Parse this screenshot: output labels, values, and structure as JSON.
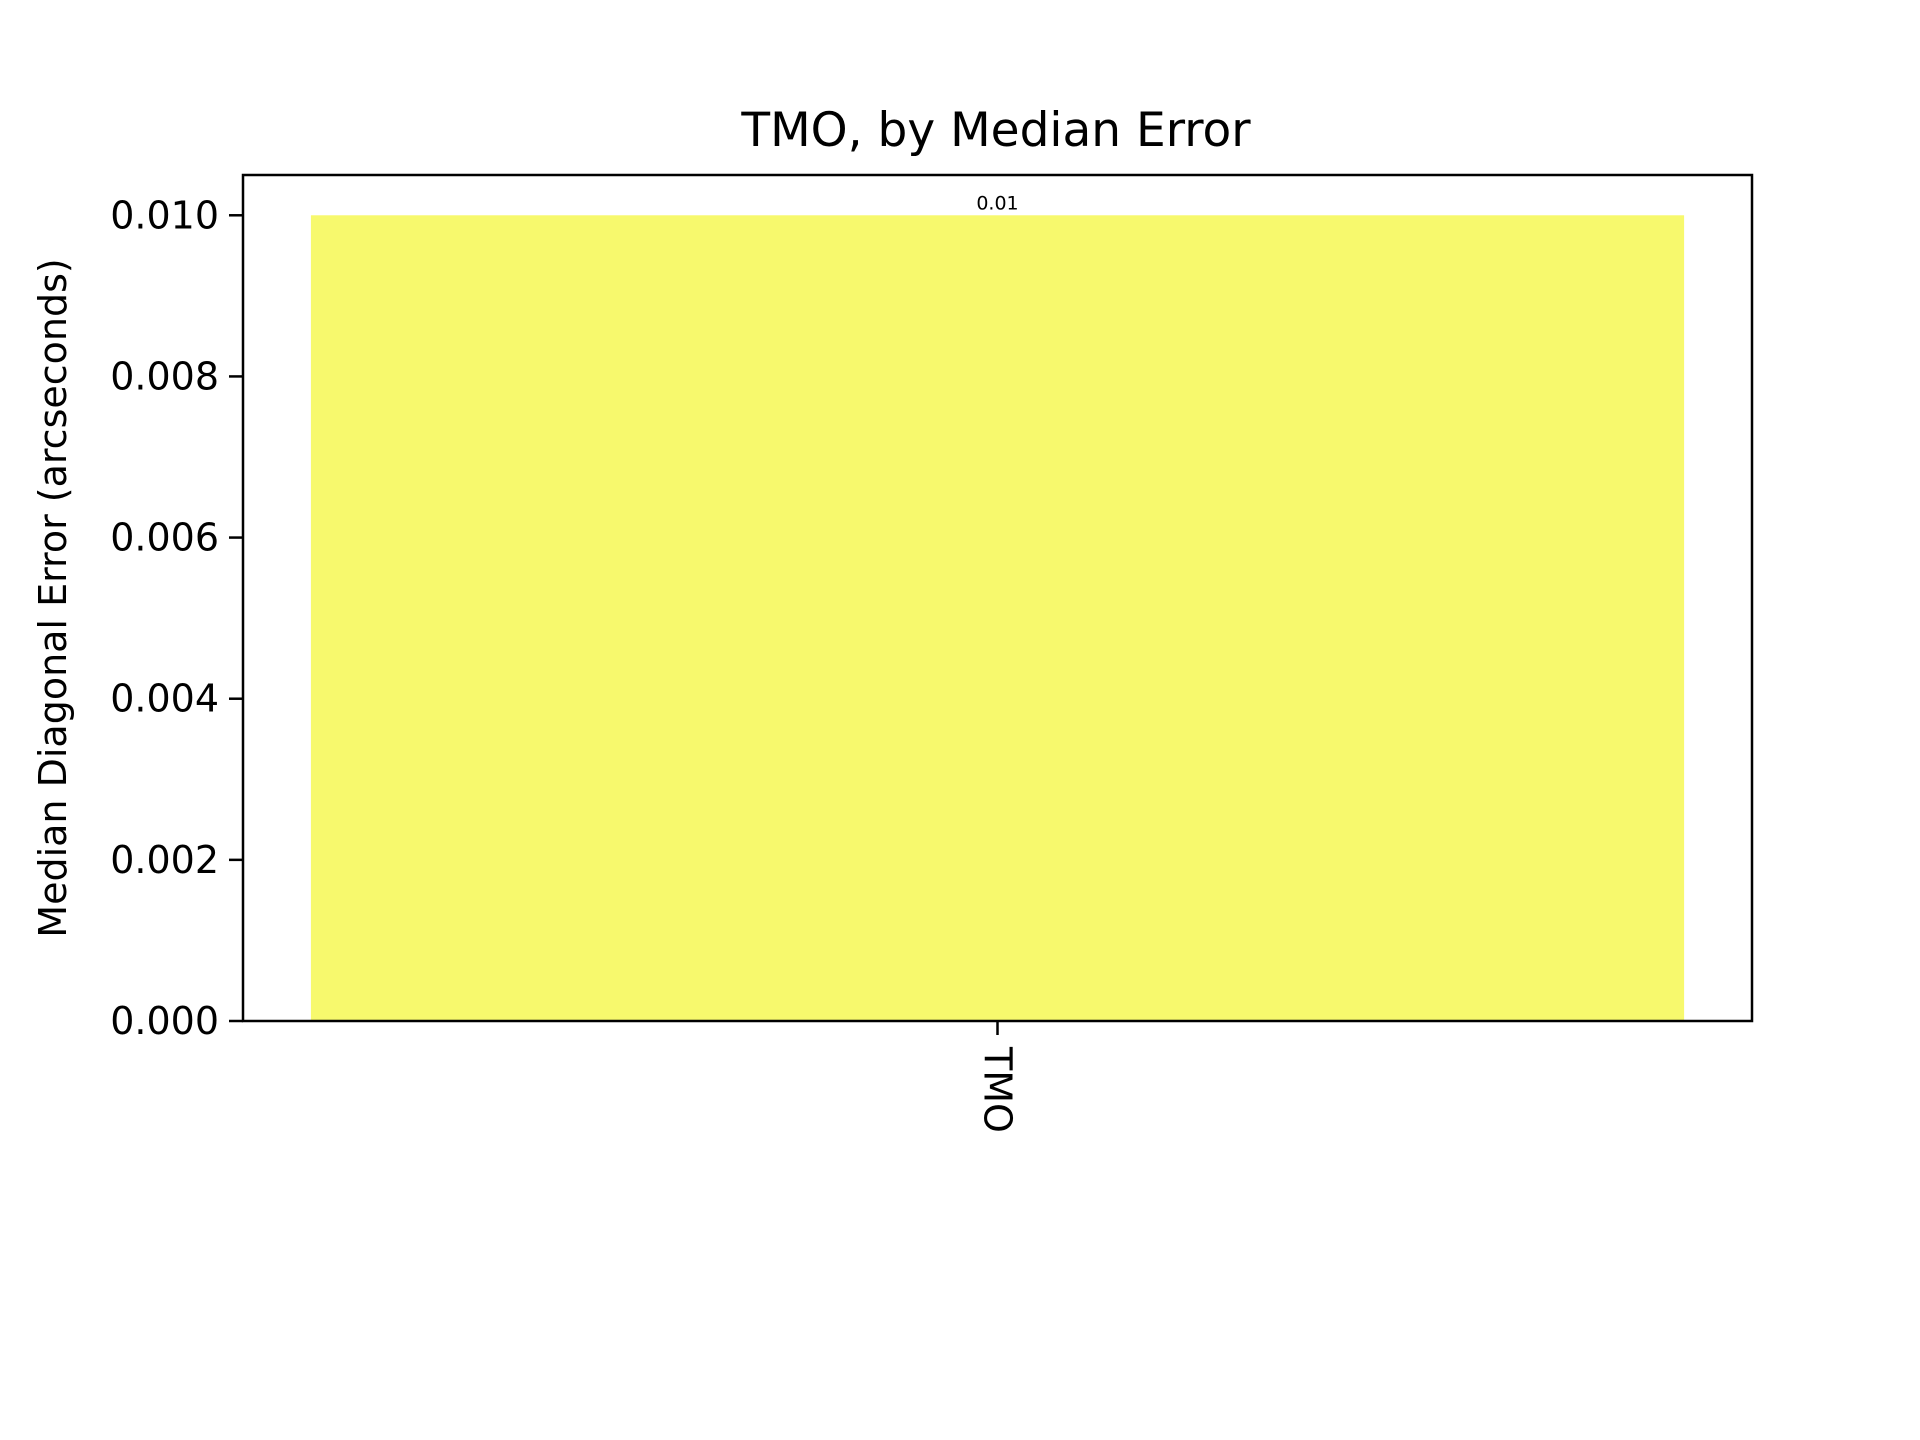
{
  "chart_data": {
    "type": "bar",
    "title": "TMO, by Median Error",
    "ylabel": "Median Diagonal Error (arcseconds)",
    "categories": [
      "TMO"
    ],
    "values": [
      0.01
    ],
    "data_labels": [
      "0.01"
    ],
    "ylim": [
      0,
      0.0105
    ],
    "yticks": [
      "0.000",
      "0.002",
      "0.004",
      "0.006",
      "0.008",
      "0.010"
    ],
    "ytick_values": [
      0,
      0.002,
      0.004,
      0.006,
      0.008,
      0.01
    ],
    "bar_color": "#f7f96d",
    "grid": false,
    "legend": "none"
  }
}
